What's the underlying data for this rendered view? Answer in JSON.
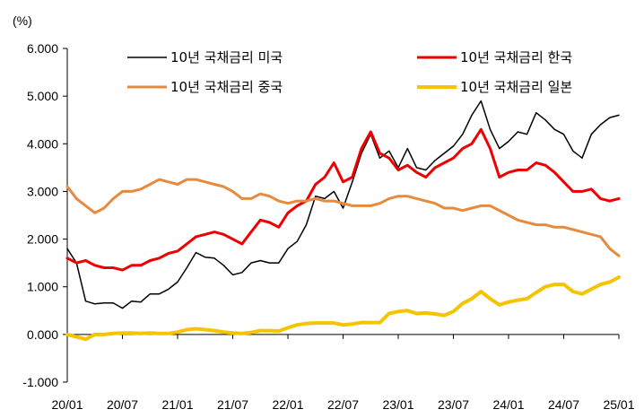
{
  "chart_data": {
    "type": "line",
    "title": "",
    "y_unit": "(%)",
    "xlabel": "",
    "ylabel": "",
    "ylim": [
      -1.0,
      6.0
    ],
    "y_ticks": [
      "6.000",
      "5.000",
      "4.000",
      "3.000",
      "2.000",
      "1.000",
      "0.000",
      "-1.000"
    ],
    "x_ticks": [
      "20/01",
      "20/07",
      "21/01",
      "21/07",
      "22/01",
      "22/07",
      "23/01",
      "23/07",
      "24/01",
      "24/07",
      "25/01"
    ],
    "grid": false,
    "legend_position": "top",
    "x": [
      "20/01",
      "20/02",
      "20/03",
      "20/04",
      "20/05",
      "20/06",
      "20/07",
      "20/08",
      "20/09",
      "20/10",
      "20/11",
      "20/12",
      "21/01",
      "21/02",
      "21/03",
      "21/04",
      "21/05",
      "21/06",
      "21/07",
      "21/08",
      "21/09",
      "21/10",
      "21/11",
      "21/12",
      "22/01",
      "22/02",
      "22/03",
      "22/04",
      "22/05",
      "22/06",
      "22/07",
      "22/08",
      "22/09",
      "22/10",
      "22/11",
      "22/12",
      "23/01",
      "23/02",
      "23/03",
      "23/04",
      "23/05",
      "23/06",
      "23/07",
      "23/08",
      "23/09",
      "23/10",
      "23/11",
      "23/12",
      "24/01",
      "24/02",
      "24/03",
      "24/04",
      "24/05",
      "24/06",
      "24/07",
      "24/08",
      "24/09",
      "24/10",
      "24/11",
      "24/12",
      "25/01"
    ],
    "series": [
      {
        "name": "10년 국채금리 미국",
        "color": "#000000",
        "values": [
          1.8,
          1.5,
          0.7,
          0.64,
          0.66,
          0.66,
          0.55,
          0.7,
          0.68,
          0.85,
          0.85,
          0.95,
          1.1,
          1.4,
          1.72,
          1.62,
          1.6,
          1.45,
          1.25,
          1.3,
          1.5,
          1.55,
          1.5,
          1.5,
          1.8,
          1.95,
          2.3,
          2.9,
          2.85,
          3.0,
          2.65,
          3.2,
          3.8,
          4.2,
          3.7,
          3.85,
          3.5,
          3.9,
          3.5,
          3.45,
          3.65,
          3.8,
          3.95,
          4.2,
          4.6,
          4.9,
          4.3,
          3.9,
          4.05,
          4.25,
          4.2,
          4.65,
          4.5,
          4.3,
          4.2,
          3.85,
          3.7,
          4.2,
          4.4,
          4.55,
          4.6
        ]
      },
      {
        "name": "10년 국채금리 한국",
        "color": "#ee0000",
        "values": [
          1.6,
          1.5,
          1.55,
          1.45,
          1.4,
          1.4,
          1.35,
          1.45,
          1.45,
          1.55,
          1.6,
          1.7,
          1.75,
          1.9,
          2.05,
          2.1,
          2.15,
          2.1,
          2.0,
          1.9,
          2.15,
          2.4,
          2.35,
          2.25,
          2.55,
          2.7,
          2.8,
          3.15,
          3.3,
          3.6,
          3.2,
          3.3,
          3.9,
          4.25,
          3.8,
          3.7,
          3.45,
          3.55,
          3.4,
          3.3,
          3.5,
          3.6,
          3.7,
          3.9,
          4.0,
          4.3,
          3.9,
          3.3,
          3.4,
          3.45,
          3.45,
          3.6,
          3.55,
          3.4,
          3.2,
          3.0,
          3.0,
          3.05,
          2.85,
          2.8,
          2.85
        ]
      },
      {
        "name": "10년 국채금리 중국",
        "color": "#e88a3c",
        "values": [
          3.1,
          2.85,
          2.7,
          2.55,
          2.65,
          2.85,
          3.0,
          3.0,
          3.05,
          3.15,
          3.25,
          3.2,
          3.15,
          3.25,
          3.25,
          3.2,
          3.15,
          3.1,
          3.0,
          2.85,
          2.85,
          2.95,
          2.9,
          2.8,
          2.75,
          2.8,
          2.8,
          2.85,
          2.8,
          2.8,
          2.75,
          2.7,
          2.7,
          2.7,
          2.75,
          2.85,
          2.9,
          2.9,
          2.85,
          2.8,
          2.75,
          2.65,
          2.65,
          2.6,
          2.65,
          2.7,
          2.7,
          2.6,
          2.5,
          2.4,
          2.35,
          2.3,
          2.3,
          2.25,
          2.25,
          2.2,
          2.15,
          2.1,
          2.05,
          1.8,
          1.65
        ]
      },
      {
        "name": "10년 국채금리 일본",
        "color": "#f5c400",
        "values": [
          0.0,
          -0.05,
          -0.1,
          0.0,
          0.0,
          0.02,
          0.03,
          0.03,
          0.02,
          0.03,
          0.02,
          0.02,
          0.05,
          0.1,
          0.12,
          0.1,
          0.08,
          0.05,
          0.03,
          0.02,
          0.04,
          0.08,
          0.08,
          0.07,
          0.14,
          0.2,
          0.23,
          0.24,
          0.24,
          0.24,
          0.2,
          0.22,
          0.25,
          0.25,
          0.25,
          0.44,
          0.48,
          0.5,
          0.44,
          0.45,
          0.43,
          0.4,
          0.48,
          0.65,
          0.75,
          0.9,
          0.75,
          0.62,
          0.68,
          0.72,
          0.75,
          0.88,
          1.0,
          1.05,
          1.05,
          0.9,
          0.85,
          0.95,
          1.05,
          1.1,
          1.2
        ]
      }
    ]
  }
}
